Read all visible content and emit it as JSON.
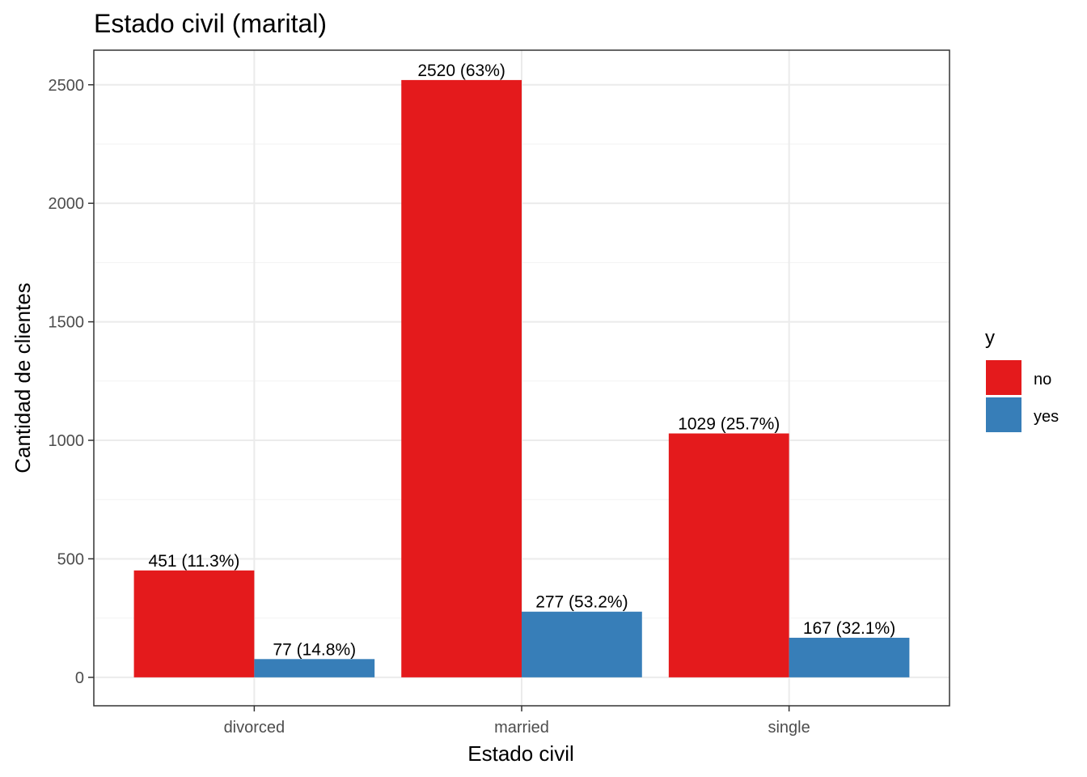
{
  "chart_data": {
    "type": "bar",
    "title": "Estado civil (marital)",
    "xlabel": "Estado civil",
    "ylabel": "Cantidad de clientes",
    "categories": [
      "divorced",
      "married",
      "single"
    ],
    "series": [
      {
        "name": "no",
        "color": "#E41A1C",
        "values": [
          451,
          2520,
          1029
        ],
        "labels": [
          "451 (11.3%)",
          "2520 (63%)",
          "1029 (25.7%)"
        ]
      },
      {
        "name": "yes",
        "color": "#377EB8",
        "values": [
          77,
          277,
          167
        ],
        "labels": [
          "77 (14.8%)",
          "277 (53.2%)",
          "167 (32.1%)"
        ]
      }
    ],
    "yticks": [
      0,
      500,
      1000,
      1500,
      2000,
      2500
    ],
    "ylim": [
      -120,
      2646
    ],
    "grid": true,
    "legend": {
      "title": "y",
      "placement": "right"
    }
  }
}
